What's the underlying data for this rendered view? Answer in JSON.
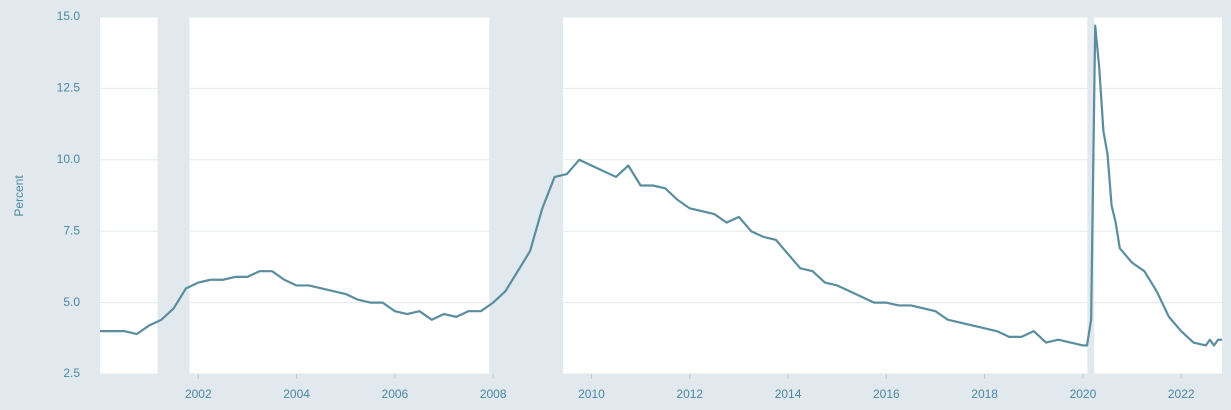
{
  "chart_data": {
    "type": "line",
    "y_label": "Percent",
    "color": "#5a8d9e",
    "grid": true,
    "xlim": [
      2000,
      2022.83
    ],
    "ylim": [
      2.5,
      15
    ],
    "xticks": [
      2002,
      2004,
      2006,
      2008,
      2010,
      2012,
      2014,
      2016,
      2018,
      2020,
      2022
    ],
    "yticks": [
      2.5,
      {
        "value": 5,
        "label": "5.0"
      },
      7.5,
      {
        "value": 10,
        "label": "10.0"
      },
      12.5,
      {
        "value": 15,
        "label": "15.0"
      }
    ],
    "shaded_periods": [
      [
        2001.17,
        2001.82
      ],
      [
        2007.92,
        2009.42
      ],
      [
        2020.09,
        2020.23
      ]
    ],
    "x": [
      2000.0,
      2000.25,
      2000.5,
      2000.75,
      2001.0,
      2001.25,
      2001.5,
      2001.75,
      2002.0,
      2002.25,
      2002.5,
      2002.75,
      2003.0,
      2003.25,
      2003.5,
      2003.75,
      2004.0,
      2004.25,
      2004.5,
      2004.75,
      2005.0,
      2005.25,
      2005.5,
      2005.75,
      2006.0,
      2006.25,
      2006.5,
      2006.75,
      2007.0,
      2007.25,
      2007.5,
      2007.75,
      2008.0,
      2008.25,
      2008.5,
      2008.75,
      2009.0,
      2009.25,
      2009.5,
      2009.75,
      2010.0,
      2010.25,
      2010.5,
      2010.75,
      2011.0,
      2011.25,
      2011.5,
      2011.75,
      2012.0,
      2012.25,
      2012.5,
      2012.75,
      2013.0,
      2013.25,
      2013.5,
      2013.75,
      2014.0,
      2014.25,
      2014.5,
      2014.75,
      2015.0,
      2015.25,
      2015.5,
      2015.75,
      2016.0,
      2016.25,
      2016.5,
      2016.75,
      2017.0,
      2017.25,
      2017.5,
      2017.75,
      2018.0,
      2018.25,
      2018.5,
      2018.75,
      2019.0,
      2019.25,
      2019.5,
      2019.75,
      2020.0,
      2020.083,
      2020.167,
      2020.25,
      2020.333,
      2020.417,
      2020.5,
      2020.583,
      2020.667,
      2020.75,
      2021.0,
      2021.25,
      2021.5,
      2021.75,
      2022.0,
      2022.25,
      2022.5,
      2022.583,
      2022.667,
      2022.75,
      2022.83
    ],
    "series": [
      {
        "color": "#5a8d9e",
        "values": [
          4.0,
          4.0,
          4.0,
          3.9,
          4.2,
          4.4,
          4.8,
          5.5,
          5.7,
          5.8,
          5.8,
          5.9,
          5.9,
          6.1,
          6.1,
          5.8,
          5.6,
          5.6,
          5.5,
          5.4,
          5.3,
          5.1,
          5.0,
          5.0,
          4.7,
          4.6,
          4.7,
          4.4,
          4.6,
          4.5,
          4.7,
          4.7,
          5.0,
          5.4,
          6.1,
          6.8,
          8.3,
          9.4,
          9.5,
          10.0,
          9.8,
          9.6,
          9.4,
          9.8,
          9.1,
          9.1,
          9.0,
          8.6,
          8.3,
          8.2,
          8.1,
          7.8,
          8.0,
          7.5,
          7.3,
          7.2,
          6.7,
          6.2,
          6.1,
          5.7,
          5.6,
          5.4,
          5.2,
          5.0,
          5.0,
          4.9,
          4.9,
          4.8,
          4.7,
          4.4,
          4.3,
          4.2,
          4.1,
          4.0,
          3.8,
          3.8,
          4.0,
          3.6,
          3.7,
          3.6,
          3.5,
          3.5,
          4.4,
          14.7,
          13.2,
          11.0,
          10.2,
          8.4,
          7.8,
          6.9,
          6.4,
          6.1,
          5.4,
          4.5,
          4.0,
          3.6,
          3.5,
          3.7,
          3.5,
          3.7,
          3.7
        ]
      }
    ]
  }
}
